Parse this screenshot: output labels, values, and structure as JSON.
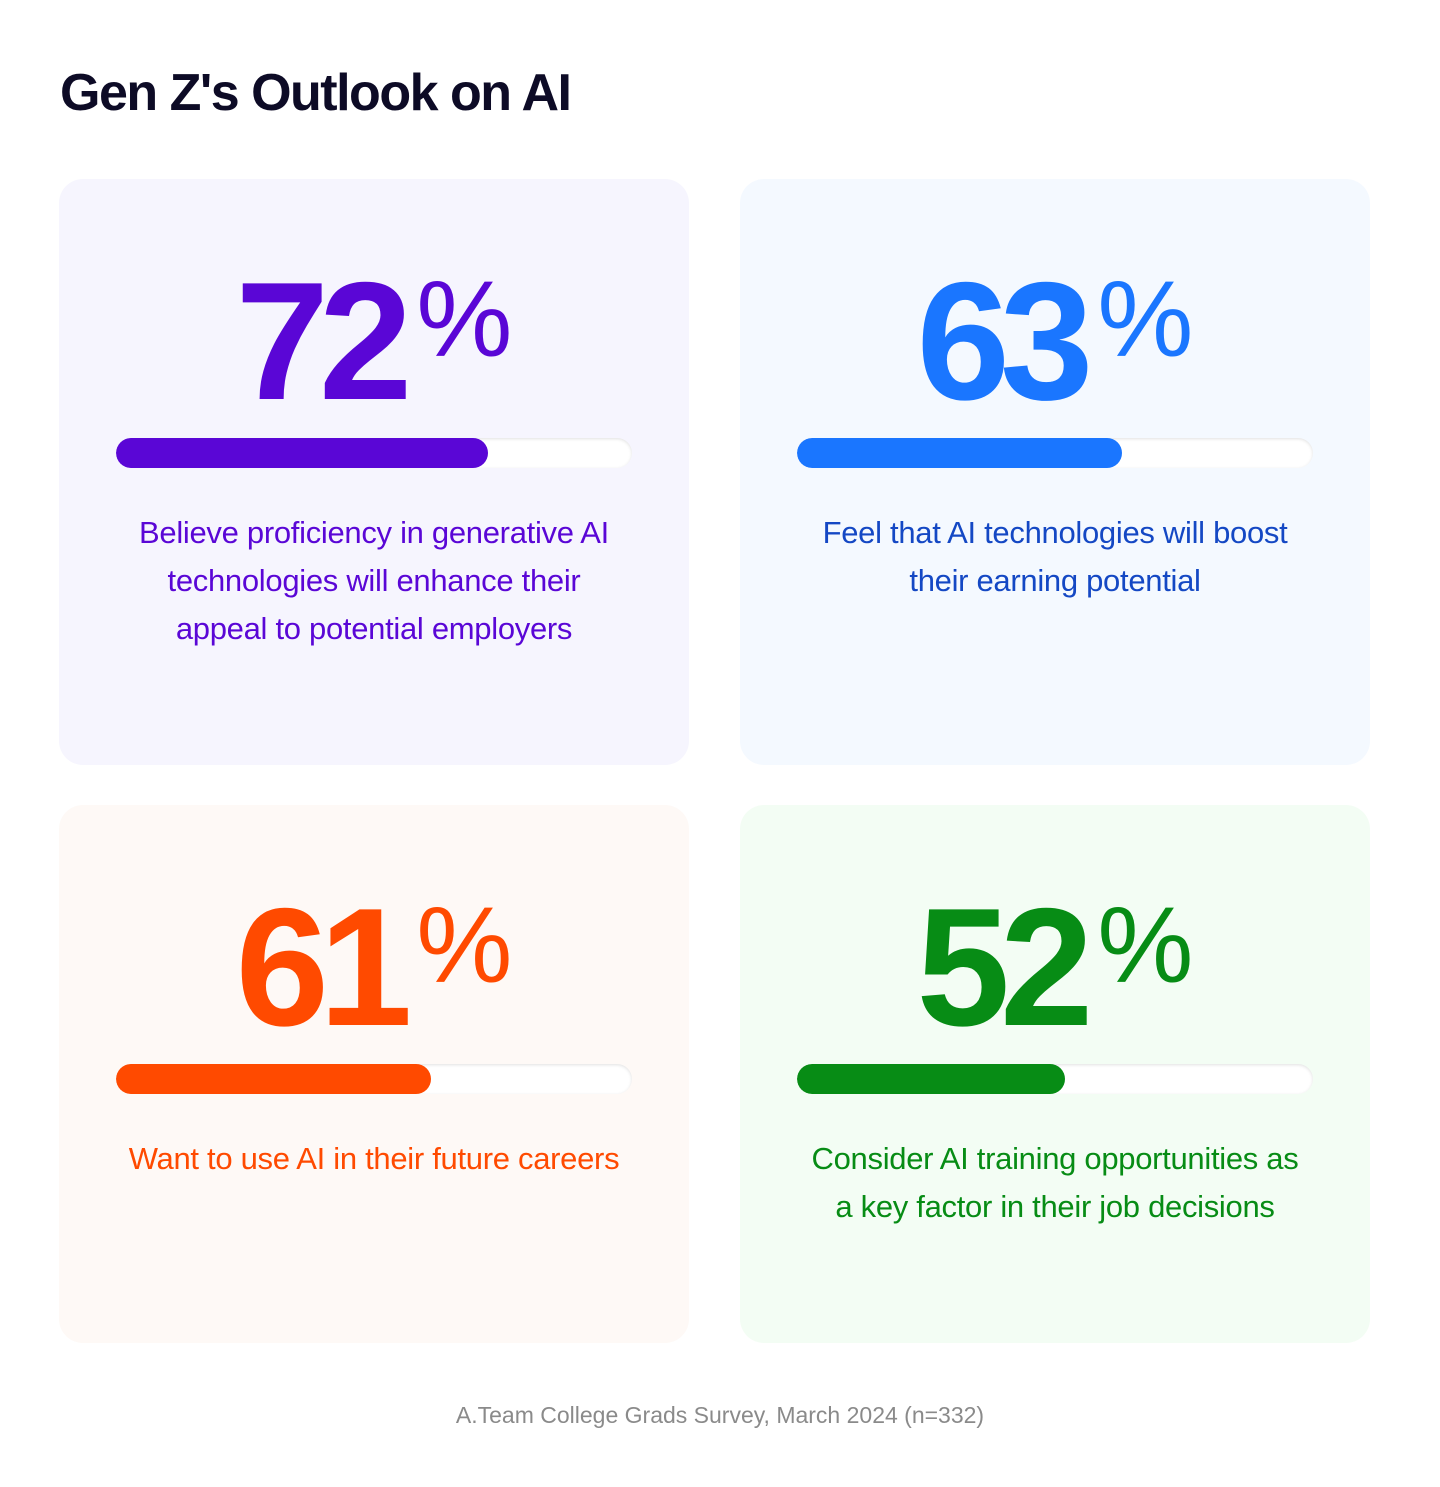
{
  "title": "Gen Z's Outlook on AI",
  "source": "A.Team College Grads Survey, March 2024 (n=332)",
  "chart_data": {
    "type": "bar",
    "title": "Gen Z's Outlook on AI",
    "unit": "%",
    "categories": [
      "Believe proficiency in generative AI technologies will enhance their appeal to potential employers",
      "Feel that AI technologies will boost their earning potential",
      "Want to use AI in their future careers",
      "Consider AI training opportunities as a key factor in their job decisions"
    ],
    "values": [
      72,
      63,
      61,
      52
    ],
    "ylim": [
      0,
      100
    ]
  },
  "cards": [
    {
      "number": "72",
      "percent": "%",
      "value": 72,
      "description": "Believe proficiency in generative AI technologies will enhance their appeal to potential employers",
      "accent": "#5a06d6",
      "text_color": "#5a06d6",
      "background": "#f6f5fe"
    },
    {
      "number": "63",
      "percent": "%",
      "value": 63,
      "description": "Feel that AI technologies will boost their earning potential",
      "accent": "#1a76ff",
      "text_color": "#1448c4",
      "background": "#f4f9ff"
    },
    {
      "number": "61",
      "percent": "%",
      "value": 61,
      "description": "Want to use AI in their future careers",
      "accent": "#ff4a00",
      "text_color": "#ff4a00",
      "background": "#fef9f6"
    },
    {
      "number": "52",
      "percent": "%",
      "value": 52,
      "description": "Consider AI training opportunities as a key factor in their job decisions",
      "accent": "#078c15",
      "text_color": "#078c15",
      "background": "#f3fdf4"
    }
  ]
}
